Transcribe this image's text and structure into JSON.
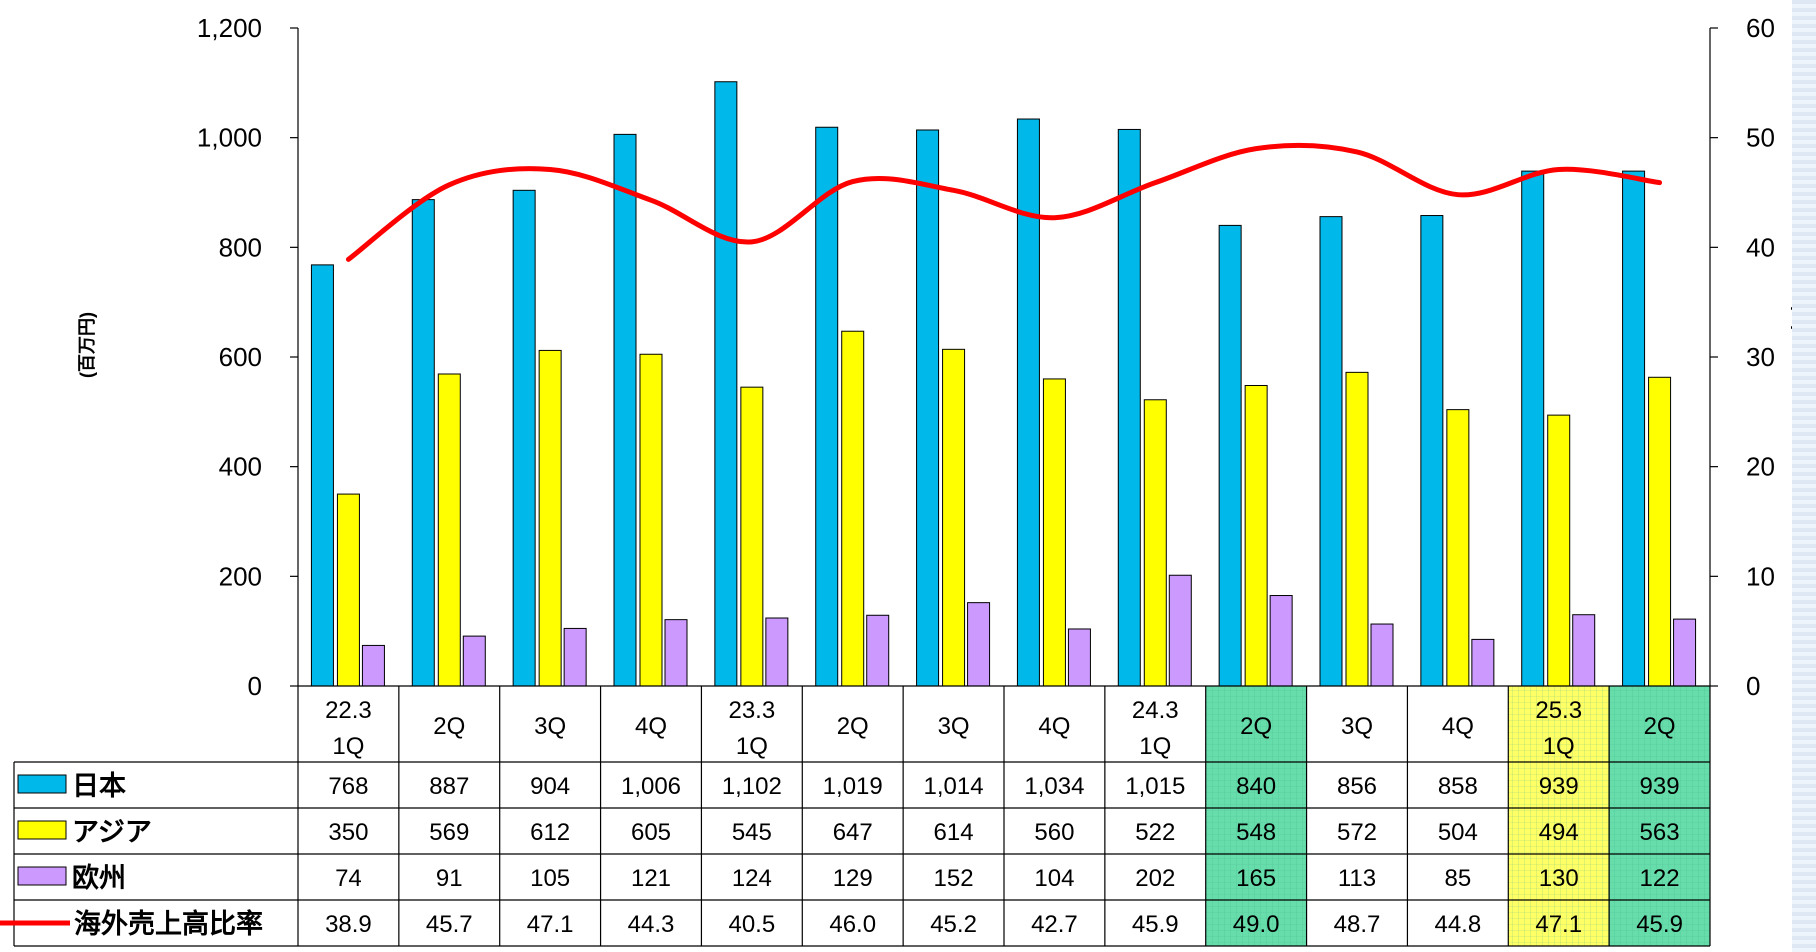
{
  "chart_data": {
    "type": "bar",
    "categories": [
      [
        "22.3",
        "1Q"
      ],
      [
        "2Q"
      ],
      [
        "3Q"
      ],
      [
        "4Q"
      ],
      [
        "23.3",
        "1Q"
      ],
      [
        "2Q"
      ],
      [
        "3Q"
      ],
      [
        "4Q"
      ],
      [
        "24.3",
        "1Q"
      ],
      [
        "2Q"
      ],
      [
        "3Q"
      ],
      [
        "4Q"
      ],
      [
        "25.3",
        "1Q"
      ],
      [
        "2Q"
      ]
    ],
    "ylabel": "(百万円)",
    "y2label": "(%)",
    "ylim": [
      0,
      1200
    ],
    "y2lim": [
      0,
      60
    ],
    "yticks": [
      "0",
      "200",
      "400",
      "600",
      "800",
      "1,000",
      "1,200"
    ],
    "y2ticks": [
      "0",
      "10",
      "20",
      "30",
      "40",
      "50",
      "60"
    ],
    "grid": false,
    "series": [
      {
        "name": "日本",
        "kind": "bar",
        "axis": "left",
        "color": "#00b8ea",
        "values": [
          768,
          887,
          904,
          1006,
          1102,
          1019,
          1014,
          1034,
          1015,
          840,
          856,
          858,
          939,
          939
        ],
        "labels": [
          "768",
          "887",
          "904",
          "1,006",
          "1,102",
          "1,019",
          "1,014",
          "1,034",
          "1,015",
          "840",
          "856",
          "858",
          "939",
          "939"
        ]
      },
      {
        "name": "アジア",
        "kind": "bar",
        "axis": "left",
        "color": "#ffff00",
        "values": [
          350,
          569,
          612,
          605,
          545,
          647,
          614,
          560,
          522,
          548,
          572,
          504,
          494,
          563
        ],
        "labels": [
          "350",
          "569",
          "612",
          "605",
          "545",
          "647",
          "614",
          "560",
          "522",
          "548",
          "572",
          "504",
          "494",
          "563"
        ]
      },
      {
        "name": "欧州",
        "kind": "bar",
        "axis": "left",
        "color": "#cc99ff",
        "values": [
          74,
          91,
          105,
          121,
          124,
          129,
          152,
          104,
          202,
          165,
          113,
          85,
          130,
          122
        ],
        "labels": [
          "74",
          "91",
          "105",
          "121",
          "124",
          "129",
          "152",
          "104",
          "202",
          "165",
          "113",
          "85",
          "130",
          "122"
        ]
      },
      {
        "name": "海外売上高比率",
        "kind": "line",
        "axis": "right",
        "color": "#ff0000",
        "values": [
          38.9,
          45.7,
          47.1,
          44.3,
          40.5,
          46.0,
          45.2,
          42.7,
          45.9,
          49.0,
          48.7,
          44.8,
          47.1,
          45.9
        ],
        "labels": [
          "38.9",
          "45.7",
          "47.1",
          "44.3",
          "40.5",
          "46.0",
          "45.2",
          "42.7",
          "45.9",
          "49.0",
          "48.7",
          "44.8",
          "47.1",
          "45.9"
        ]
      }
    ],
    "highlight_columns": [
      {
        "index": 9,
        "color": "#66ddaa"
      },
      {
        "index": 12,
        "color": "#ffff66"
      },
      {
        "index": 13,
        "color": "#66ddaa"
      }
    ]
  }
}
